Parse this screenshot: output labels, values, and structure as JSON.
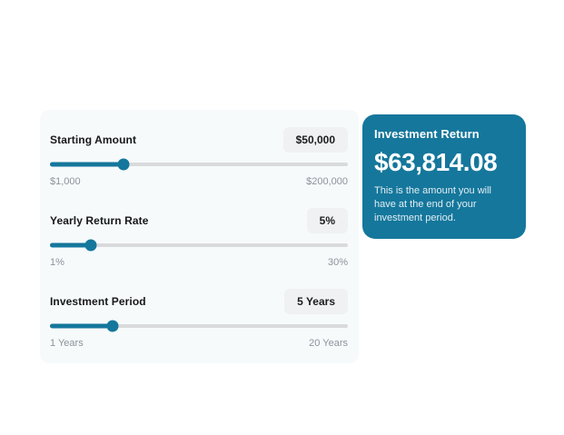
{
  "theme": {
    "accent": "#15779c",
    "panel_bg": "#f6fafb",
    "track_color": "#d9dadb",
    "badge_bg": "#f0f1f2"
  },
  "calculator": {
    "sliders": [
      {
        "label": "Starting Amount",
        "value_display": "$50,000",
        "value": 50000,
        "min": 1000,
        "max": 200000,
        "min_label": "$1,000",
        "max_label": "$200,000"
      },
      {
        "label": "Yearly Return Rate",
        "value_display": "5%",
        "value": 5,
        "min": 1,
        "max": 30,
        "min_label": "1%",
        "max_label": "30%"
      },
      {
        "label": "Investment Period",
        "value_display": "5 Years",
        "value": 5,
        "min": 1,
        "max": 20,
        "min_label": "1 Years",
        "max_label": "20 Years"
      }
    ]
  },
  "result_card": {
    "title": "Investment Return",
    "amount": "$63,814.08",
    "description": "This is the amount you will have at the end of your investment period."
  }
}
